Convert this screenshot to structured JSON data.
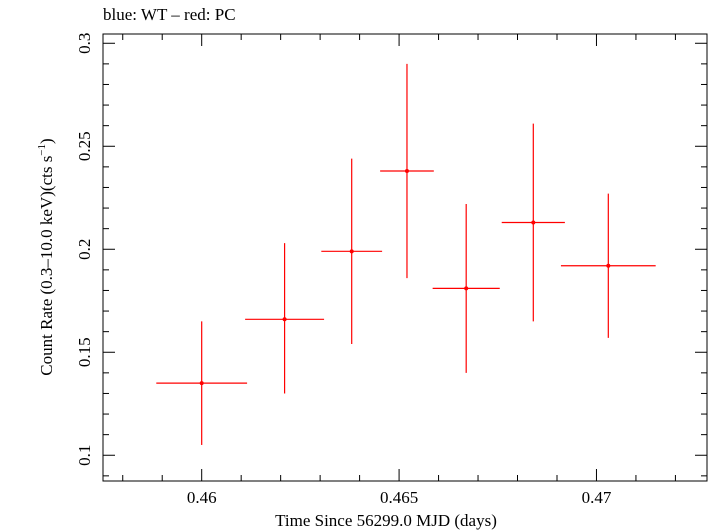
{
  "chart_data": {
    "type": "scatter",
    "title": "blue: WT – red: PC",
    "xlabel": "Time Since 56299.0 MJD (days)",
    "ylabel_main": "Count Rate (0.3–10.0 keV)(cts s",
    "ylabel_sup": "−1",
    "ylabel_end": ")",
    "xlim": [
      0.4575,
      0.4728
    ],
    "ylim": [
      0.0875,
      0.3045
    ],
    "xticks": [
      0.46,
      0.465,
      0.47
    ],
    "xtick_labels": [
      "0.46",
      "0.465",
      "0.47"
    ],
    "yticks": [
      0.1,
      0.15,
      0.2,
      0.25,
      0.3
    ],
    "ytick_labels": [
      "0.1",
      "0.15",
      "0.2",
      "0.25",
      "0.3"
    ],
    "grid": false,
    "series": [
      {
        "color": "#ff0000",
        "points": [
          {
            "x": 0.46,
            "xerr": 0.00115,
            "y": 0.135,
            "yerr_low": 0.03,
            "yerr_high": 0.03
          },
          {
            "x": 0.4621,
            "xerr": 0.001,
            "y": 0.166,
            "yerr_low": 0.036,
            "yerr_high": 0.037
          },
          {
            "x": 0.4638,
            "xerr": 0.00077,
            "y": 0.199,
            "yerr_low": 0.045,
            "yerr_high": 0.045
          },
          {
            "x": 0.4652,
            "xerr": 0.00068,
            "y": 0.238,
            "yerr_low": 0.052,
            "yerr_high": 0.052
          },
          {
            "x": 0.4667,
            "xerr": 0.00085,
            "y": 0.181,
            "yerr_low": 0.041,
            "yerr_high": 0.041
          },
          {
            "x": 0.4684,
            "xerr": 0.0008,
            "y": 0.213,
            "yerr_low": 0.048,
            "yerr_high": 0.048
          },
          {
            "x": 0.4703,
            "xerr": 0.0012,
            "y": 0.192,
            "yerr_low": 0.035,
            "yerr_high": 0.035
          }
        ]
      }
    ]
  }
}
